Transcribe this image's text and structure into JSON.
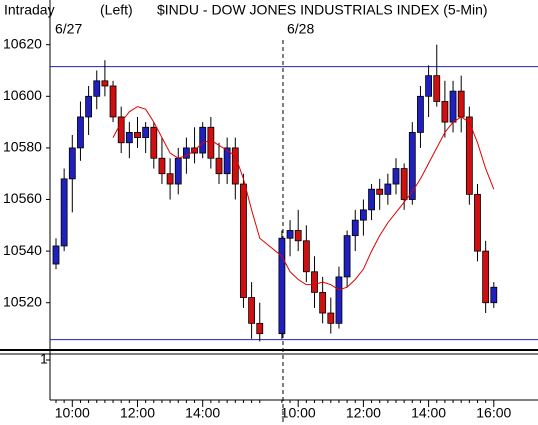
{
  "chart_data": {
    "type": "candlestick",
    "title": "$INDU - DOW JONES INDUSTRIALS INDEX  (5-Min)",
    "left_label": "Intraday",
    "axis_side": "(Left)",
    "dates": [
      "6/27",
      "6/28"
    ],
    "lower_panel_label": "1",
    "categories": [
      null,
      null,
      "10:00",
      null,
      null,
      null,
      null,
      null,
      null,
      null,
      "12:00",
      null,
      null,
      null,
      null,
      null,
      null,
      null,
      "14:00",
      null,
      null,
      null,
      null,
      null,
      null,
      null,
      null,
      null,
      "10:00",
      null,
      null,
      null,
      null,
      null,
      null,
      null,
      "12:00",
      null,
      null,
      null,
      null,
      null,
      null,
      null,
      "14:00",
      null,
      null,
      null,
      null,
      null,
      null,
      null,
      "16:00"
    ],
    "open": [
      10535,
      10542,
      10568,
      10580,
      10592,
      10600,
      10606,
      10604,
      10592,
      10582,
      10586,
      10584,
      10588,
      10576,
      10570,
      10566,
      10576,
      10580,
      10578,
      10588,
      10576,
      10570,
      10580,
      10566,
      10522,
      10512,
      10508,
      10545,
      10548,
      10544,
      10532,
      10524,
      10516,
      10512,
      10530,
      10546,
      10552,
      10556,
      10564,
      10562,
      10566,
      10572,
      10560,
      10586,
      10600,
      10608,
      10598,
      10590,
      10602,
      10592,
      10562,
      10540,
      10520
    ],
    "high": [
      10545,
      10572,
      10585,
      10598,
      10604,
      10610,
      10614,
      10606,
      10596,
      10590,
      10592,
      10590,
      10590,
      10584,
      10576,
      10580,
      10584,
      10588,
      10590,
      10592,
      10582,
      10584,
      10584,
      10570,
      10528,
      10520,
      10548,
      10552,
      10556,
      10550,
      10538,
      10530,
      10522,
      10534,
      10548,
      10556,
      10560,
      10566,
      10568,
      10570,
      10576,
      10574,
      10590,
      10604,
      10612,
      10620,
      10606,
      10606,
      10608,
      10596,
      10566,
      10544,
      10528
    ],
    "low": [
      10533,
      10540,
      10555,
      10575,
      10585,
      10595,
      10600,
      10590,
      10578,
      10576,
      10580,
      10578,
      10572,
      10566,
      10560,
      10562,
      10570,
      10574,
      10576,
      10572,
      10566,
      10566,
      10560,
      10518,
      10506,
      10505,
      10506,
      10538,
      10540,
      10528,
      10518,
      10512,
      10508,
      10510,
      10526,
      10540,
      10546,
      10552,
      10556,
      10558,
      10562,
      10556,
      10558,
      10580,
      10592,
      10596,
      10584,
      10586,
      10586,
      10558,
      10536,
      10516,
      10518
    ],
    "close": [
      10542,
      10568,
      10580,
      10592,
      10600,
      10606,
      10604,
      10592,
      10582,
      10586,
      10584,
      10588,
      10576,
      10570,
      10566,
      10576,
      10580,
      10578,
      10588,
      10576,
      10570,
      10580,
      10566,
      10522,
      10512,
      10508,
      10545,
      10548,
      10544,
      10532,
      10524,
      10516,
      10512,
      10530,
      10546,
      10552,
      10556,
      10564,
      10562,
      10566,
      10572,
      10560,
      10586,
      10600,
      10608,
      10598,
      10590,
      10602,
      10592,
      10562,
      10540,
      10520,
      10526
    ],
    "up_color": "#2020c0",
    "down_color": "#d01010",
    "moving_average": {
      "color": "#e00000",
      "values": [
        null,
        null,
        null,
        null,
        null,
        null,
        null,
        10584,
        10590,
        10594,
        10596,
        10595,
        10590,
        10584,
        10578,
        10576,
        10577,
        10579,
        10582,
        10583,
        10581,
        10579,
        10577,
        10568,
        10556,
        10545,
        10538,
        10532,
        10529,
        10527,
        10527,
        10528,
        10527,
        10525,
        10526,
        10529,
        10533,
        10540,
        10546,
        10551,
        10555,
        10559,
        10563,
        10568,
        10574,
        10580,
        10586,
        10590,
        10592,
        10590,
        10582,
        10572,
        10564
      ]
    },
    "reference_lines": [
      10611.5,
      10505.7
    ],
    "reference_color": "#2020c0",
    "ylim": [
      10504,
      10635
    ],
    "yticks": [
      10520,
      10540,
      10560,
      10580,
      10600,
      10620
    ]
  }
}
